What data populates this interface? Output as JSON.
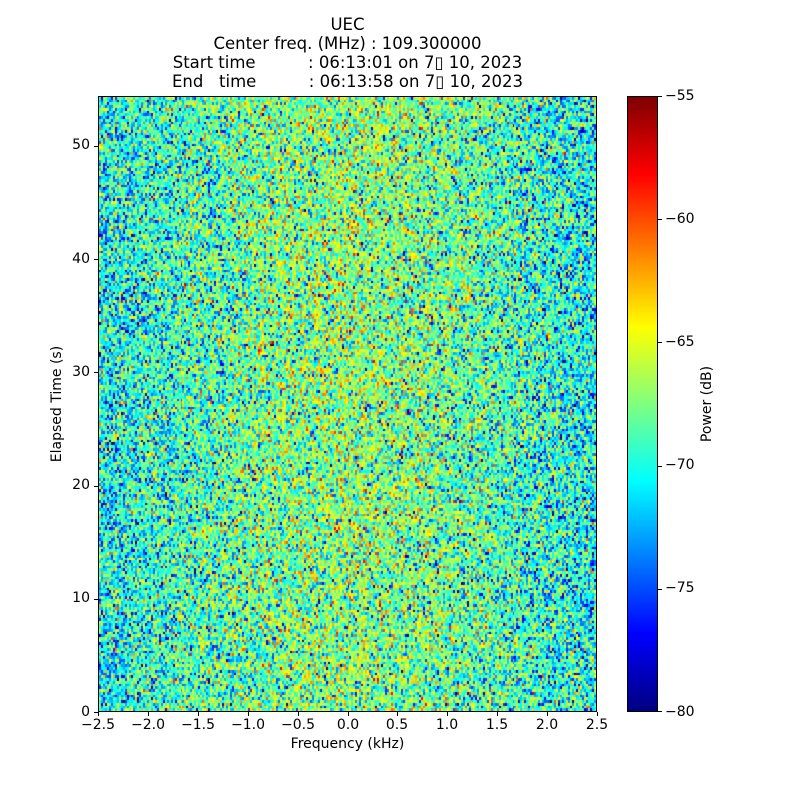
{
  "header": {
    "lines": [
      "UEC",
      "Center freq. (MHz) : 109.300000",
      "Start time          : 06:13:01 on 7▯ 10, 2023",
      "End   time          : 06:13:58 on 7▯ 10, 2023"
    ]
  },
  "chart_data": {
    "type": "heatmap",
    "title": "UEC",
    "center_freq_mhz": "109.300000",
    "start_time": "06:13:01 on 7▯ 10, 2023",
    "end_time": "06:13:58 on 7▯ 10, 2023",
    "xlabel": "Frequency (kHz)",
    "ylabel": "Elapsed Time (s)",
    "xlim": [
      -2.5,
      2.5
    ],
    "ylim": [
      0,
      54.4
    ],
    "xticks": [
      -2.5,
      -2.0,
      -1.5,
      -1.0,
      -0.5,
      0.0,
      0.5,
      1.0,
      1.5,
      2.0,
      2.5
    ],
    "xtick_labels": [
      "−2.5",
      "−2.0",
      "−1.5",
      "−1.0",
      "−0.5",
      "0.0",
      "0.5",
      "1.0",
      "1.5",
      "2.0",
      "2.5"
    ],
    "yticks": [
      0,
      10,
      20,
      30,
      40,
      50
    ],
    "ytick_labels": [
      "0",
      "10",
      "20",
      "30",
      "40",
      "50"
    ],
    "colorbar": {
      "label": "Power (dB)",
      "vmin": -80,
      "vmax": -55,
      "ticks": [
        -55,
        -60,
        -65,
        -70,
        -75,
        -80
      ],
      "tick_labels": [
        "−55",
        "−60",
        "−65",
        "−70",
        "−75",
        "−80"
      ],
      "colormap": "jet"
    },
    "noise_model": {
      "description": "Uniform broadband noise speckle across the whole time-frequency plane, slightly stronger (greener/yellower) near 0 kHz and slightly bluer toward the band edges; no visible signal lines.",
      "mean_power_db_edge": -71.2,
      "mean_power_db_center": -66.8,
      "sigma_db": 3.3,
      "low_tail_fraction": 0.13,
      "low_tail_offset_db": -5,
      "center_bump_sigma_khz": 1.6,
      "grid_cols": 250,
      "grid_rows": 224,
      "seed": 20230710
    }
  }
}
